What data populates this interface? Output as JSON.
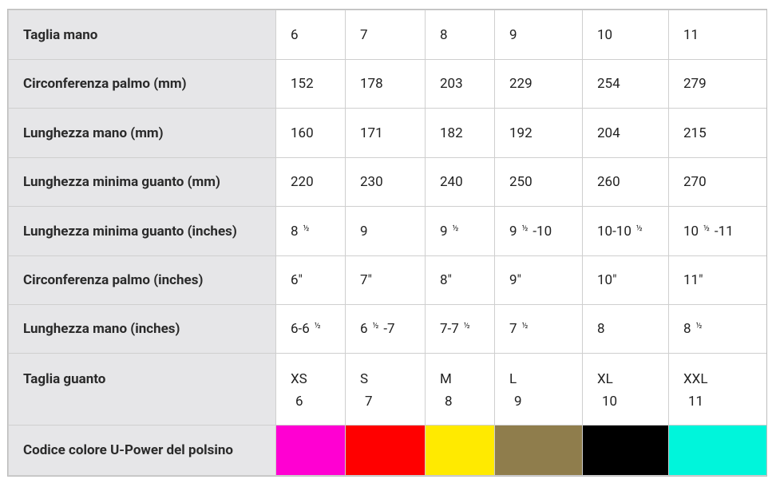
{
  "table": {
    "rows": [
      {
        "label": "Taglia mano",
        "cells": [
          "6",
          "7",
          "8",
          "9",
          "10",
          "11"
        ]
      },
      {
        "label": "Circonferenza palmo (mm)",
        "cells": [
          "152",
          "178",
          "203",
          "229",
          "254",
          "279"
        ]
      },
      {
        "label": "Lunghezza mano (mm)",
        "cells": [
          "160",
          "171",
          "182",
          "192",
          "204",
          "215"
        ]
      },
      {
        "label": "Lunghezza minima guanto (mm)",
        "cells": [
          "220",
          "230",
          "240",
          "250",
          "260",
          "270"
        ]
      },
      {
        "label": "Lunghezza minima guanto (inches)",
        "cells": [
          "8 ½",
          "9",
          "9 ½",
          "9 ½ -10",
          "10-10 ½",
          "10 ½ -11"
        ]
      },
      {
        "label": "Circonferenza palmo (inches)",
        "cells": [
          "6\"",
          "7\"",
          "8\"",
          "9\"",
          "10\"",
          "11\""
        ]
      },
      {
        "label": "Lunghezza mano (inches)",
        "cells": [
          "6-6 ½",
          "6 ½ -7",
          "7-7 ½",
          "7 ½",
          "8",
          "8 ½"
        ]
      },
      {
        "label": "Taglia guanto",
        "cells": [
          [
            "XS",
            "6"
          ],
          [
            "S",
            "7"
          ],
          [
            "M",
            "8"
          ],
          [
            "L",
            "9"
          ],
          [
            "XL",
            "10"
          ],
          [
            "XXL",
            "11"
          ]
        ]
      },
      {
        "label": "Codice colore U-Power del polsino",
        "colors": [
          "#ff00d2",
          "#ff0000",
          "#ffea00",
          "#8f7d4c",
          "#000000",
          "#00f5db"
        ]
      }
    ]
  }
}
